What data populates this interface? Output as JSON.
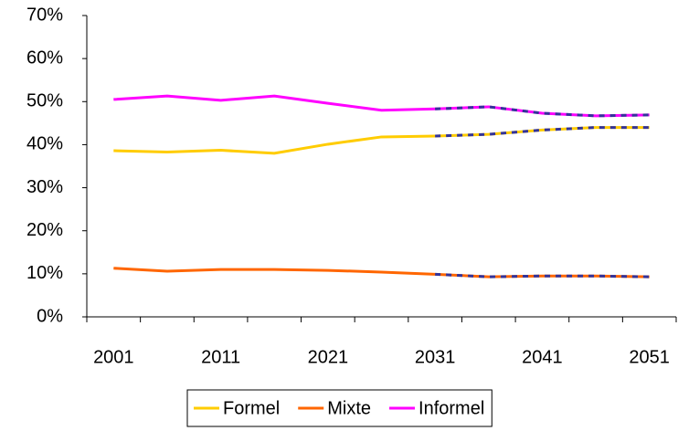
{
  "chart_data": {
    "type": "line",
    "categories": [
      "2001",
      null,
      "2011",
      null,
      "2021",
      null,
      "2031",
      null,
      "2041",
      null,
      "2051"
    ],
    "series": [
      {
        "name": "Formel",
        "color": "#FFCC00",
        "values": [
          38.6,
          38.3,
          38.7,
          38.0,
          40.1,
          41.8,
          42.0,
          42.4,
          43.4,
          44.0,
          44.0
        ]
      },
      {
        "name": "Mixte",
        "color": "#FF6600",
        "values": [
          11.3,
          10.6,
          11.0,
          11.0,
          10.8,
          10.4,
          9.9,
          9.3,
          9.5,
          9.5,
          9.3
        ]
      },
      {
        "name": "Informel",
        "color": "#FF00FF",
        "values": [
          50.5,
          51.3,
          50.3,
          51.3,
          49.6,
          48.0,
          48.3,
          48.8,
          47.3,
          46.7,
          46.9
        ]
      }
    ],
    "dash_color": "#333399",
    "dashed_from_index": 6,
    "ylim": [
      0,
      70
    ],
    "yticks": [
      {
        "value": 0,
        "label": "0%"
      },
      {
        "value": 10,
        "label": "10%"
      },
      {
        "value": 20,
        "label": "20%"
      },
      {
        "value": 30,
        "label": "30%"
      },
      {
        "value": 40,
        "label": "40%"
      },
      {
        "value": 50,
        "label": "50%"
      },
      {
        "value": 60,
        "label": "60%"
      },
      {
        "value": 70,
        "label": "70%"
      }
    ],
    "grid": false,
    "legend": "bottom"
  }
}
